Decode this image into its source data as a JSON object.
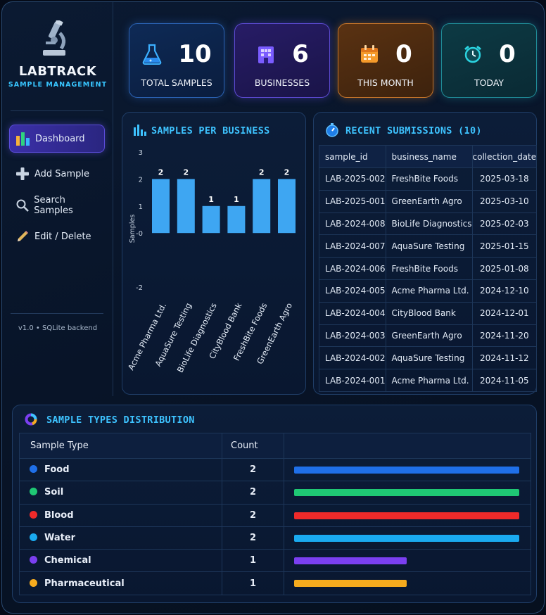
{
  "sidebar": {
    "brand_title": "LABTRACK",
    "brand_subtitle": "SAMPLE MANAGEMENT",
    "logo_icon": "microscope-icon",
    "items": [
      {
        "label": "Dashboard",
        "icon": "bar-chart-icon",
        "active": true
      },
      {
        "label": "Add Sample",
        "icon": "plus-icon",
        "active": false
      },
      {
        "label": "Search Samples",
        "icon": "search-icon",
        "active": false
      },
      {
        "label": "Edit / Delete",
        "icon": "pencil-icon",
        "active": false
      }
    ],
    "version": "v1.0 • SQLite backend"
  },
  "stats": [
    {
      "label": "TOTAL SAMPLES",
      "value": "10",
      "icon": "flask-icon",
      "color": "#2aa8ff"
    },
    {
      "label": "BUSINESSES",
      "value": "6",
      "icon": "building-icon",
      "color": "#7a5cff"
    },
    {
      "label": "THIS MONTH",
      "value": "0",
      "icon": "calendar-icon",
      "color": "#f59a2a"
    },
    {
      "label": "TODAY",
      "value": "0",
      "icon": "alarm-clock-icon",
      "color": "#2bc9d6"
    }
  ],
  "chart_panel": {
    "title": "SAMPLES PER BUSINESS",
    "icon": "bar-chart-icon"
  },
  "chart_data": {
    "type": "bar",
    "title": "SAMPLES PER BUSINESS",
    "categories": [
      "Acme Pharma Ltd.",
      "AquaSure Testing",
      "BioLife Diagnostics",
      "CityBlood Bank",
      "FreshBite Foods",
      "GreenEarth Agro"
    ],
    "values": [
      2,
      2,
      1,
      1,
      2,
      2
    ],
    "data_labels": [
      "2",
      "2",
      "1",
      "1",
      "2",
      "2"
    ],
    "ylabel": "Samples",
    "xlabel": "",
    "ylim": [
      -2,
      3
    ],
    "yticks": [
      "3",
      "2",
      "1",
      "-0",
      "-2"
    ],
    "bar_color": "#3ea6f2",
    "grid": false,
    "legend": "none"
  },
  "recent": {
    "title": "RECENT SUBMISSIONS (10)",
    "icon": "stopwatch-icon",
    "columns": [
      "sample_id",
      "business_name",
      "collection_date"
    ],
    "rows": [
      [
        "LAB-2025-002",
        "FreshBite Foods",
        "2025-03-18"
      ],
      [
        "LAB-2025-001",
        "GreenEarth Agro",
        "2025-03-10"
      ],
      [
        "LAB-2024-008",
        "BioLife Diagnostics",
        "2025-02-03"
      ],
      [
        "LAB-2024-007",
        "AquaSure Testing",
        "2025-01-15"
      ],
      [
        "LAB-2024-006",
        "FreshBite Foods",
        "2025-01-08"
      ],
      [
        "LAB-2024-005",
        "Acme Pharma Ltd.",
        "2024-12-10"
      ],
      [
        "LAB-2024-004",
        "CityBlood Bank",
        "2024-12-01"
      ],
      [
        "LAB-2024-003",
        "GreenEarth Agro",
        "2024-11-20"
      ],
      [
        "LAB-2024-002",
        "AquaSure Testing",
        "2024-11-12"
      ],
      [
        "LAB-2024-001",
        "Acme Pharma Ltd.",
        "2024-11-05"
      ]
    ]
  },
  "distribution": {
    "title": "SAMPLE TYPES DISTRIBUTION",
    "icon": "donut-chart-icon",
    "columns": [
      "Sample Type",
      "Count"
    ],
    "max_count": 2,
    "rows": [
      {
        "type": "Food",
        "count": 2,
        "color": "#1f6fe8"
      },
      {
        "type": "Soil",
        "count": 2,
        "color": "#1fc874"
      },
      {
        "type": "Blood",
        "count": 2,
        "color": "#ee2a2a"
      },
      {
        "type": "Water",
        "count": 2,
        "color": "#1aaaf0"
      },
      {
        "type": "Chemical",
        "count": 1,
        "color": "#7b3ff0"
      },
      {
        "type": "Pharmaceutical",
        "count": 1,
        "color": "#f5ab1e"
      }
    ]
  }
}
